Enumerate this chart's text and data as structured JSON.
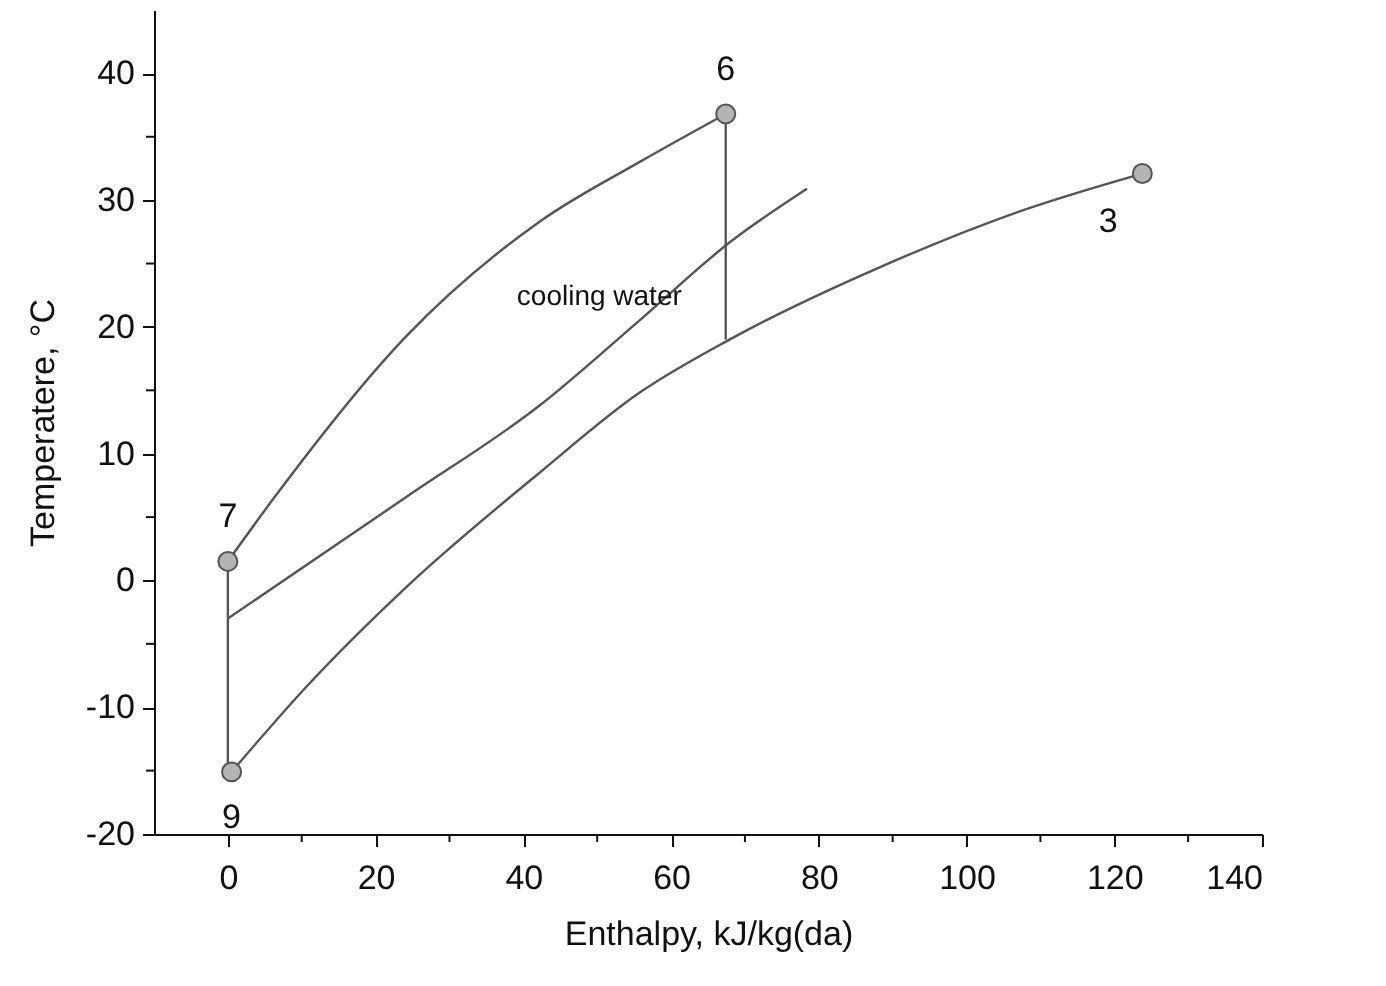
{
  "chart_data": {
    "type": "line",
    "xlabel": "Enthalpy, kJ/kg(da)",
    "ylabel": "Temperatere, °C",
    "xlim": [
      -10,
      140
    ],
    "ylim": [
      -20,
      45
    ],
    "xticks": [
      0,
      {
        "value": 10,
        "label": null
      },
      20,
      {
        "value": 30,
        "label": null
      },
      40,
      {
        "value": 50,
        "label": null
      },
      60,
      {
        "value": 70,
        "label": null
      },
      80,
      {
        "value": 90,
        "label": null
      },
      100,
      {
        "value": 110,
        "label": null
      },
      120,
      {
        "value": 130,
        "label": null
      },
      140
    ],
    "yticks": [
      -20,
      {
        "value": -15,
        "label": null
      },
      -10,
      {
        "value": -5,
        "label": null
      },
      0,
      {
        "value": 5,
        "label": null
      },
      10,
      {
        "value": 15,
        "label": null
      },
      20,
      {
        "value": 25,
        "label": null
      },
      30,
      {
        "value": 35,
        "label": null
      },
      40
    ],
    "grid": false,
    "marker": "none",
    "line_style": "solid",
    "series": [
      {
        "color": "#555555",
        "x": [
          0,
          6.1,
          24.2,
          42.2,
          55.7,
          67.4
        ],
        "values": [
          1.5,
          6.4,
          19.3,
          28.3,
          33.0,
          36.8
        ]
      },
      {
        "color": "#555555",
        "x": [
          0,
          24.2,
          42.2,
          55.7,
          68,
          78.4
        ],
        "values": [
          -3,
          6.6,
          13.8,
          20.5,
          26.7,
          30.9
        ]
      },
      {
        "color": "#555555",
        "x": [
          0.5,
          10.6,
          24.2,
          42.2,
          55.7,
          67.9,
          89,
          107.1,
          123.8
        ],
        "values": [
          -15.1,
          -8.4,
          -0.5,
          8.5,
          14.8,
          19.0,
          24.9,
          29.1,
          32.1
        ]
      },
      {
        "color": "#555555",
        "x": [
          0,
          0
        ],
        "values": [
          1.5,
          -15.1
        ]
      },
      {
        "color": "#555555",
        "x": [
          67.4,
          67.4
        ],
        "values": [
          36.8,
          19.0
        ]
      },
      {
        "type": "scatter",
        "marker": "circle",
        "color": "#b4b4b4",
        "x": [
          0,
          67.4,
          123.8,
          0.5
        ],
        "values": [
          1.5,
          36.8,
          32.1,
          -15.1
        ]
      }
    ],
    "annotations": [
      {
        "text": "7",
        "x": 0,
        "y": 1.5
      },
      {
        "text": "6",
        "x": 67.4,
        "y": 36.8
      },
      {
        "text": "3",
        "x": 123.8,
        "y": 32.1
      },
      {
        "text": "9",
        "x": 0.5,
        "y": -15.1
      },
      {
        "text": "cooling water",
        "x": 55.7,
        "y": 20.5
      }
    ]
  }
}
